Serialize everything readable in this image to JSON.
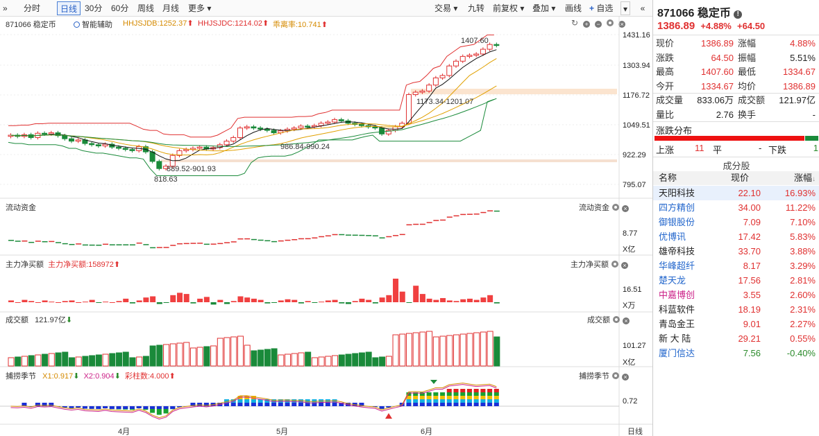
{
  "toolbar": {
    "period_buttons": [
      "分时",
      "日线",
      "30分",
      "60分",
      "周线",
      "月线",
      "更多"
    ],
    "right_buttons": [
      "交易",
      "九转",
      "前复权",
      "叠加",
      "画线",
      "自选"
    ],
    "active": "日线"
  },
  "main_chart": {
    "stock_label": "871066 稳定币",
    "assist_label": "智能辅助",
    "indicators": [
      {
        "text": "HHJSJDB:1252.37",
        "color": "#d58a00"
      },
      {
        "text": "HHJSJDC:1214.02",
        "color": "#e03030"
      },
      {
        "text": "乖离率:10.741",
        "color": "#d58a00"
      }
    ],
    "y_labels": [
      "1431.16",
      "1303.94",
      "1176.72",
      "1049.51",
      "922.29",
      "795.07"
    ],
    "annotations": [
      "1407.60",
      "1173.34-1201.07",
      "986.84-990.24",
      "889.52-901.93",
      "818.63"
    ]
  },
  "panes": {
    "flow": {
      "label": "流动资金",
      "right_label": "流动资金",
      "value": "8.77",
      "unit": "X亿"
    },
    "net": {
      "label": "主力净买额",
      "value_label": "主力净买额:158972",
      "right_label": "主力净买额",
      "value": "16.51",
      "unit": "X万"
    },
    "volume": {
      "label": "成交额",
      "value_label": "121.97亿",
      "right_label": "成交额",
      "value": "101.27",
      "unit": "X亿"
    },
    "season": {
      "label": "捕捞季节",
      "x1": "X1:0.917",
      "x2": "X2:0.904",
      "bars": "彩柱数:4.000",
      "right_label": "捕捞季节",
      "value": "0.72"
    }
  },
  "x_axis": {
    "labels": [
      "4月",
      "5月",
      "6月"
    ],
    "period": "日线"
  },
  "quote": {
    "code_name": "871066 稳定币",
    "price": "1386.89",
    "change_pct": "+4.88%",
    "change": "+64.50",
    "rows": [
      {
        "k": "现价",
        "v": "1386.89",
        "vc": "red",
        "k2": "涨幅",
        "v2": "4.88%",
        "v2c": "red"
      },
      {
        "k": "涨跌",
        "v": "64.50",
        "vc": "red",
        "k2": "振幅",
        "v2": "5.51%",
        "v2c": "blk"
      },
      {
        "k": "最高",
        "v": "1407.60",
        "vc": "red",
        "k2": "最低",
        "v2": "1334.67",
        "v2c": "red"
      },
      {
        "k": "今开",
        "v": "1334.67",
        "vc": "red",
        "k2": "均价",
        "v2": "1386.89",
        "v2c": "red"
      },
      {
        "k": "成交量",
        "v": "833.06万",
        "vc": "blk",
        "k2": "成交额",
        "v2": "121.97亿",
        "v2c": "blk"
      },
      {
        "k": "量比",
        "v": "2.76",
        "vc": "blk",
        "k2": "换手",
        "v2": "-",
        "v2c": "blk"
      }
    ]
  },
  "distribution": {
    "title": "涨跌分布",
    "up_label": "上涨",
    "up": "11",
    "flat_label": "平",
    "flat": "-",
    "down_label": "下跌",
    "down": "1"
  },
  "constituents": {
    "title": "成分股",
    "headers": [
      "名称",
      "现价",
      "涨幅"
    ],
    "rows": [
      {
        "name": "天阳科技",
        "price": "22.10",
        "chg": "16.93%",
        "nc": "blk",
        "cc": "red"
      },
      {
        "name": "四方精创",
        "price": "34.00",
        "chg": "11.22%",
        "nc": "blue",
        "cc": "red"
      },
      {
        "name": "御银股份",
        "price": "7.09",
        "chg": "7.10%",
        "nc": "blue",
        "cc": "red"
      },
      {
        "name": "优博讯",
        "price": "17.42",
        "chg": "5.83%",
        "nc": "blue",
        "cc": "red"
      },
      {
        "name": "雄帝科技",
        "price": "33.70",
        "chg": "3.88%",
        "nc": "blk",
        "cc": "red"
      },
      {
        "name": "华峰超纤",
        "price": "8.17",
        "chg": "3.29%",
        "nc": "blue",
        "cc": "red"
      },
      {
        "name": "楚天龙",
        "price": "17.56",
        "chg": "2.81%",
        "nc": "blue",
        "cc": "red"
      },
      {
        "name": "中嘉博创",
        "price": "3.55",
        "chg": "2.60%",
        "nc": "mag",
        "cc": "red"
      },
      {
        "name": "科蓝软件",
        "price": "18.19",
        "chg": "2.31%",
        "nc": "blk",
        "cc": "red"
      },
      {
        "name": "青岛金王",
        "price": "9.01",
        "chg": "2.27%",
        "nc": "blk",
        "cc": "red"
      },
      {
        "name": "新 大 陆",
        "price": "29.21",
        "chg": "0.55%",
        "nc": "blk",
        "cc": "red"
      },
      {
        "name": "厦门信达",
        "price": "7.56",
        "chg": "-0.40%",
        "nc": "blue",
        "cc": "green"
      }
    ]
  },
  "colors": {
    "up": "#e03030",
    "down": "#1a8a3a",
    "ma5": "#111111",
    "ma10": "#e0a000",
    "ma20": "#1a8a3a",
    "ma60": "#e03030"
  }
}
